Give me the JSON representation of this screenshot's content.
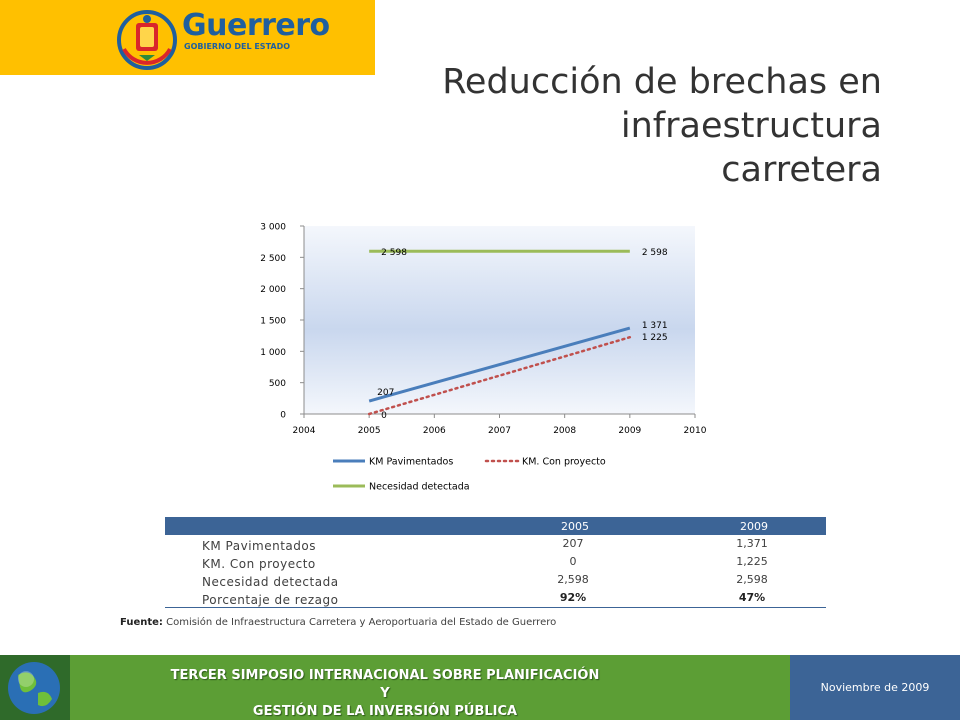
{
  "header": {
    "logo_name": "Guerrero",
    "logo_subtitle": "GOBIERNO DEL ESTADO",
    "title": "Reducción de brechas en\ninfraestructura\ncarretera"
  },
  "chart_data": {
    "type": "line",
    "x_ticks": [
      "2004",
      "2005",
      "2006",
      "2007",
      "2008",
      "2009",
      "2010"
    ],
    "y_ticks": [
      "0",
      "500",
      "1 000",
      "1 500",
      "2 000",
      "2 500",
      "3 000"
    ],
    "xlim": [
      2004,
      2010
    ],
    "ylim": [
      0,
      3000
    ],
    "grid": false,
    "legend_position": "bottom",
    "series": [
      {
        "name": "KM Pavimentados",
        "x": [
          2005,
          2009
        ],
        "values": [
          207,
          1371
        ],
        "labels": [
          "207",
          "1 371"
        ],
        "color": "#4a7ebb",
        "style": "solid"
      },
      {
        "name": "KM. Con proyecto",
        "x": [
          2005,
          2009
        ],
        "values": [
          0,
          1225
        ],
        "labels": [
          "0",
          "1 225"
        ],
        "color": "#c0504d",
        "style": "dotted"
      },
      {
        "name": "Necesidad detectada",
        "x": [
          2005,
          2009
        ],
        "values": [
          2598,
          2598
        ],
        "labels": [
          "2 598",
          "2 598"
        ],
        "color": "#9bbb59",
        "style": "solid"
      }
    ]
  },
  "table": {
    "columns": [
      "",
      "2005",
      "2009"
    ],
    "rows": [
      {
        "label": "KM Pavimentados",
        "v2005": "207",
        "v2009": "1,371"
      },
      {
        "label": "KM. Con proyecto",
        "v2005": "0",
        "v2009": "1,225"
      },
      {
        "label": "Necesidad detectada",
        "v2005": "2,598",
        "v2009": "2,598"
      },
      {
        "label": "Porcentaje de rezago",
        "v2005": "92%",
        "v2009": "47%"
      }
    ]
  },
  "source": {
    "label": "Fuente:",
    "text": " Comisión de Infraestructura Carretera y Aeroportuaria del Estado de Guerrero"
  },
  "footer": {
    "event_line1": "TERCER SIMPOSIO INTERNACIONAL SOBRE PLANIFICACIÓN Y",
    "event_line2": "GESTIÓN DE LA INVERSIÓN PÚBLICA",
    "date": "Noviembre de 2009"
  },
  "colors": {
    "logo_bg": "#ffc000",
    "table_header": "#3c6496",
    "footer_green": "#5c9e35",
    "footer_blue": "#3c6496"
  }
}
